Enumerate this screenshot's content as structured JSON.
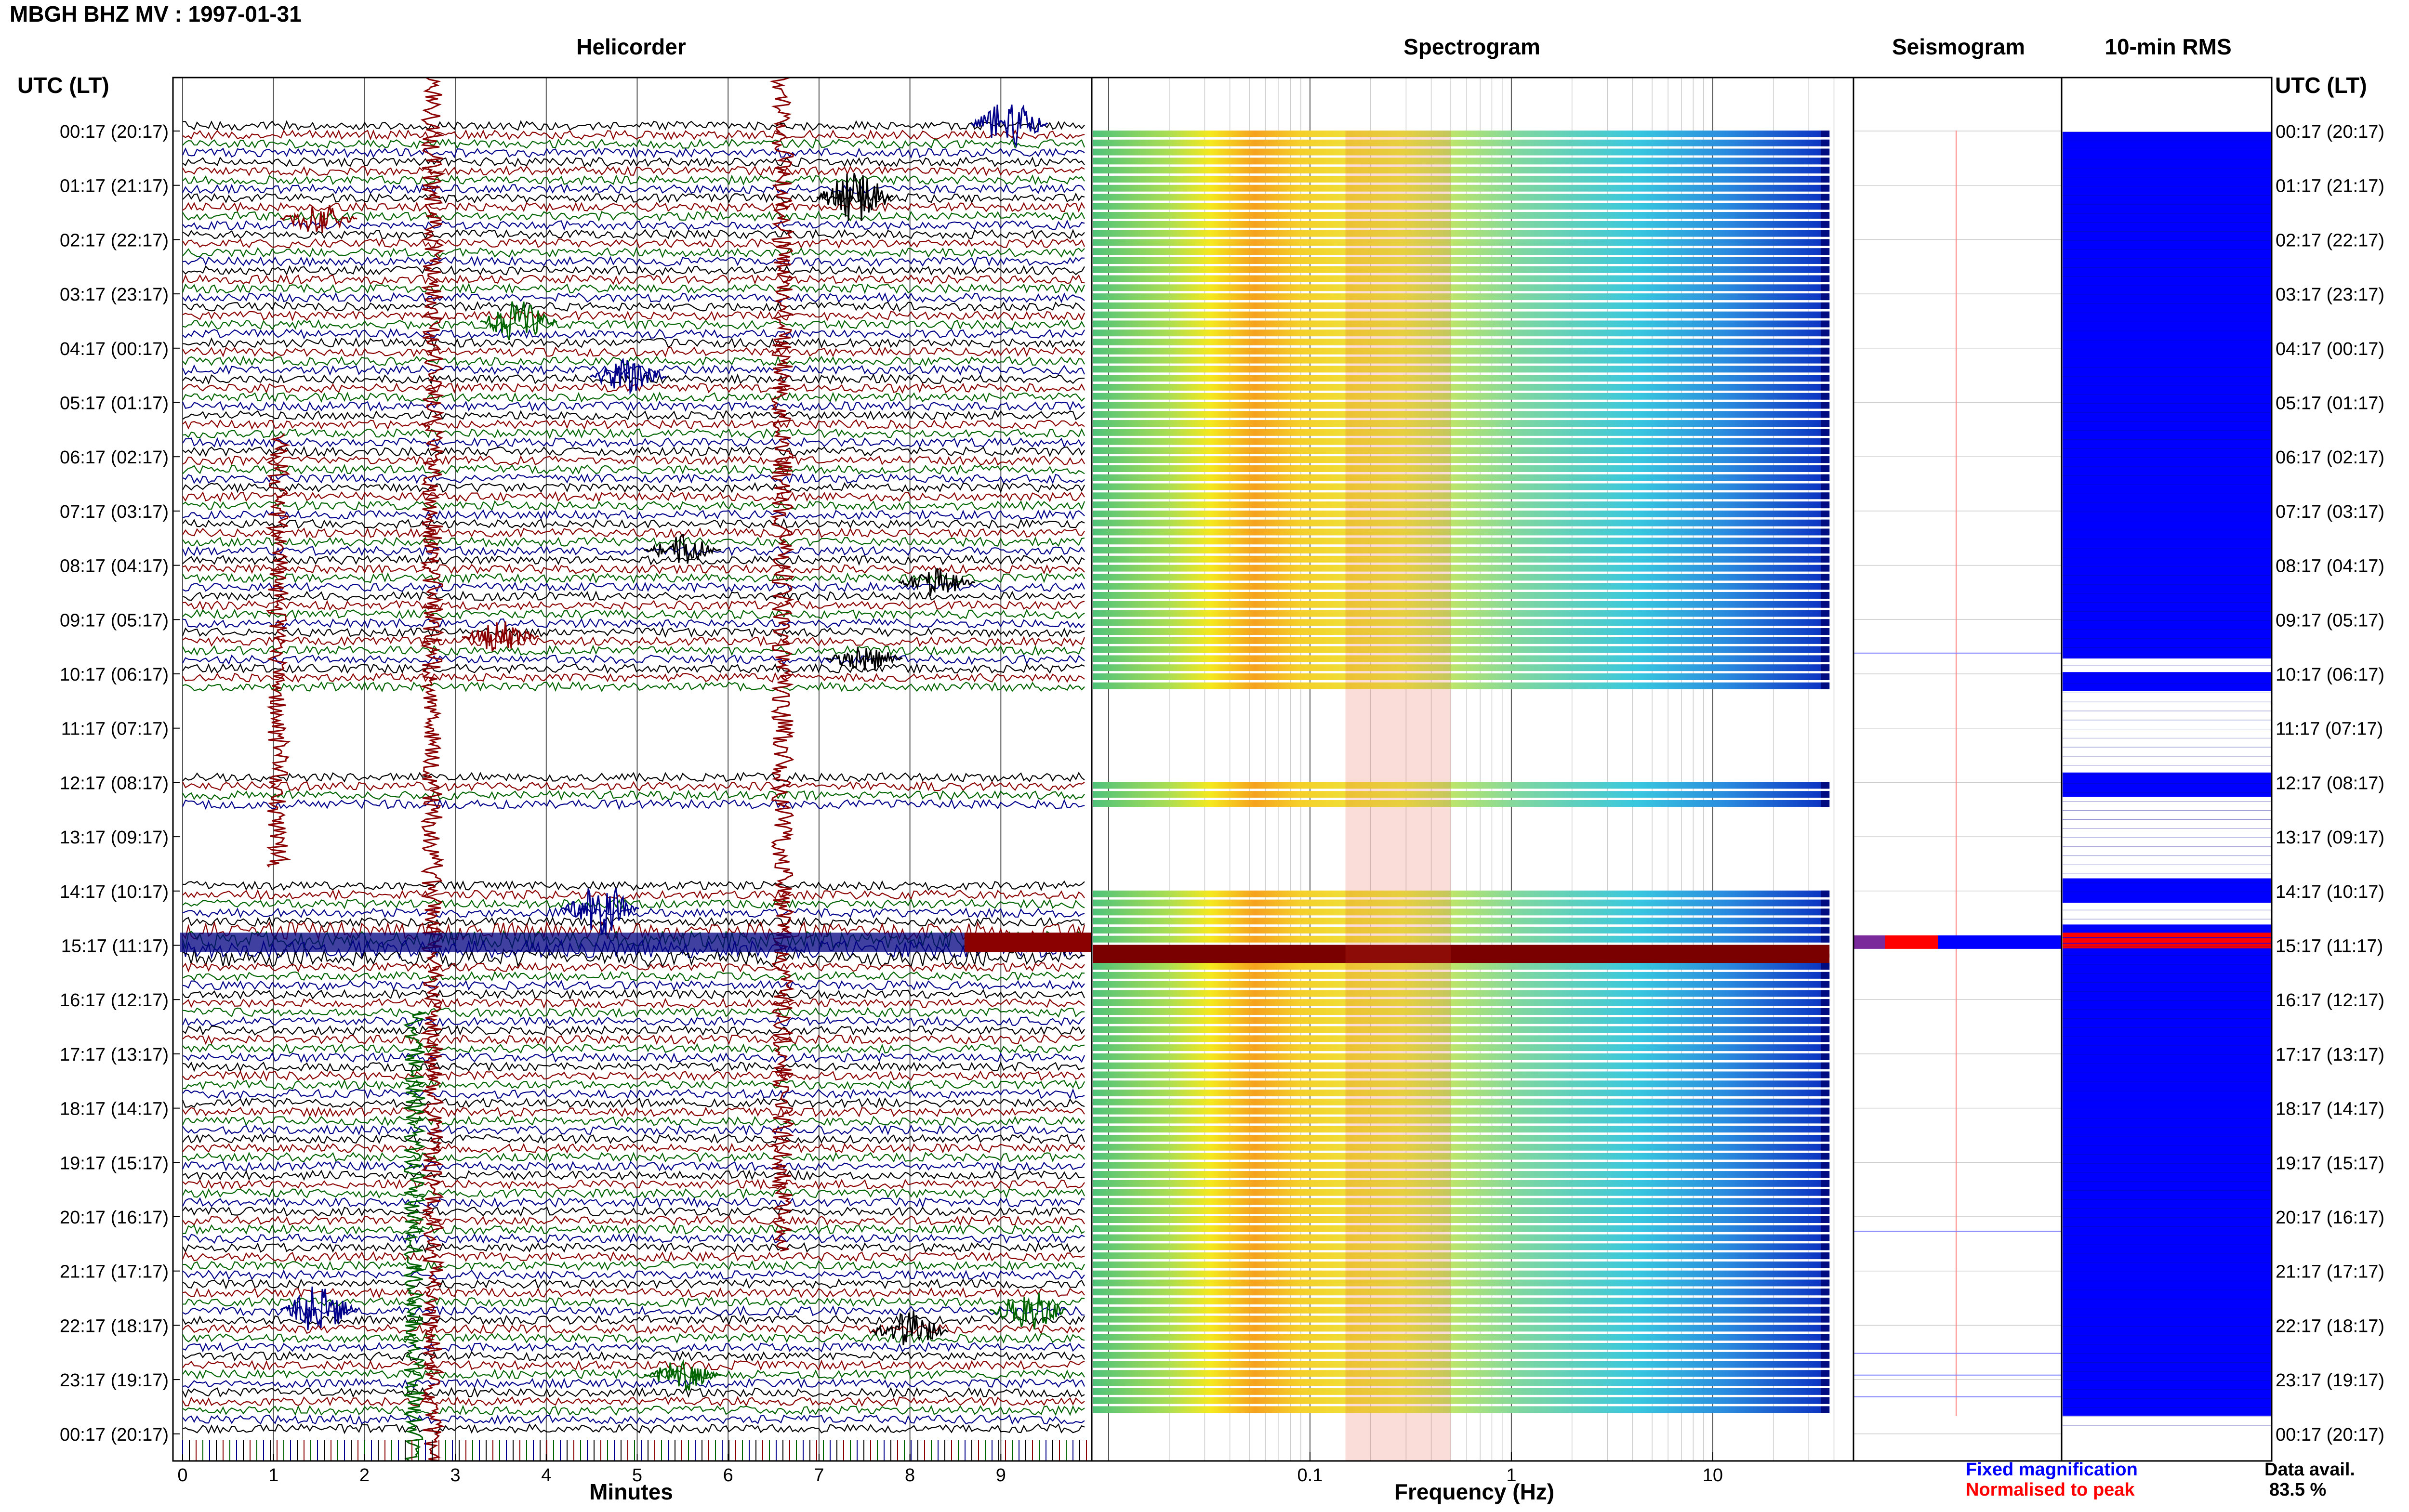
{
  "header": {
    "title": "MBGH BHZ MV : 1997-01-31"
  },
  "panels": {
    "helicorder": "Helicorder",
    "spectrogram": "Spectrogram",
    "seismogram": "Seismogram",
    "rms": "10-min RMS"
  },
  "axes": {
    "utc_label_left": "UTC (LT)",
    "utc_label_right": "UTC (LT)",
    "helicorder_xlabel": "Minutes",
    "spectrogram_xlabel": "Frequency (Hz)"
  },
  "legend": {
    "fixed": "Fixed magnification",
    "normalised": "Normalised to peak",
    "fixed_color": "#0000ff",
    "normalised_color": "#ff0000"
  },
  "availability": {
    "label": "Data avail.",
    "value": "83.5 %"
  },
  "colors": {
    "trace": [
      "#000000",
      "#8b0000",
      "#006400",
      "#00008b"
    ],
    "rms_fill": "#0000ff",
    "rms_peak": "#ff0000"
  },
  "chart_data": [
    {
      "type": "line",
      "name": "helicorder",
      "xlabel": "Minutes",
      "xlim": [
        0,
        10
      ],
      "x_ticks": [
        "0",
        "1",
        "2",
        "3",
        "4",
        "5",
        "6",
        "7",
        "8",
        "9"
      ],
      "row_labels": [
        "00:17 (20:17)",
        "01:17 (21:17)",
        "02:17 (22:17)",
        "03:17 (23:17)",
        "04:17 (00:17)",
        "05:17 (01:17)",
        "06:17 (02:17)",
        "07:17 (03:17)",
        "08:17 (04:17)",
        "09:17 (05:17)",
        "10:17 (06:17)",
        "11:17 (07:17)",
        "12:17 (08:17)",
        "13:17 (09:17)",
        "14:17 (10:17)",
        "15:17 (11:17)",
        "16:17 (12:17)",
        "17:17 (13:17)",
        "18:17 (14:17)",
        "19:17 (15:17)",
        "20:17 (16:17)",
        "21:17 (17:17)",
        "22:17 (18:17)",
        "23:17 (19:17)",
        "00:17 (20:17)"
      ],
      "traces_per_hour": 6,
      "gaps_utc_hours": [
        [
          10.4,
          12.0
        ],
        [
          12.55,
          13.95
        ]
      ],
      "events": [
        {
          "minute": 2.75,
          "note": "large spike spanning day"
        },
        {
          "minute": 6.6,
          "note": "large spike spanning day"
        },
        {
          "minute": 1.05,
          "hour": 9.5
        },
        {
          "minute": 2.6,
          "hour": 20.5
        }
      ]
    },
    {
      "type": "heatmap",
      "name": "spectrogram",
      "xlabel": "Frequency (Hz)",
      "x_scale": "log",
      "xlim": [
        0.01,
        50
      ],
      "x_ticks": [
        "0.1",
        "1",
        "10"
      ],
      "peak_band_hz": [
        0.15,
        0.5
      ],
      "gaps_utc_hours": [
        [
          10.4,
          12.0
        ],
        [
          12.55,
          13.95
        ]
      ]
    },
    {
      "type": "bar",
      "name": "10-min RMS",
      "orientation": "horizontal",
      "rows_per_hour": 6,
      "peak_utc_hours": [
        15.05,
        15.15,
        15.25
      ],
      "gaps_utc_hours": [
        [
          10.4,
          12.0
        ],
        [
          12.55,
          13.95
        ]
      ]
    }
  ]
}
